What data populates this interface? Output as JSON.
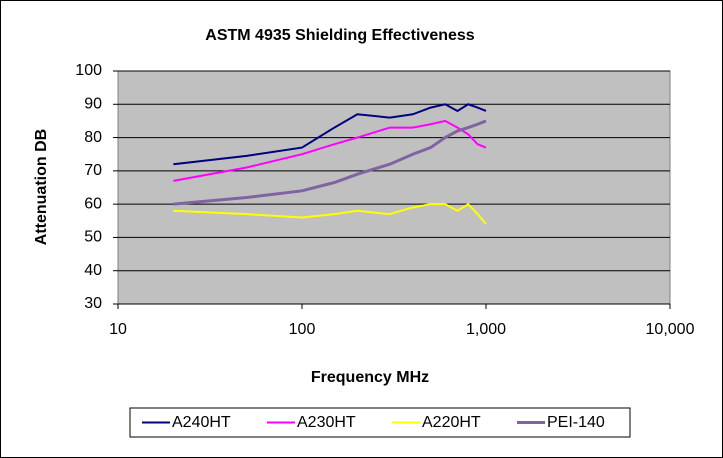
{
  "chart_data": {
    "type": "line",
    "title": "ASTM 4935 Shielding Effectiveness",
    "x_label": "Frequency MHz",
    "y_label": "Attenuation DB",
    "x": [
      20,
      50,
      100,
      150,
      200,
      300,
      400,
      500,
      600,
      700,
      800,
      900,
      1000
    ],
    "series": [
      {
        "name": "A240HT",
        "color": "#000080",
        "values": [
          72,
          74.5,
          77,
          83,
          87,
          86,
          87,
          89,
          90,
          88,
          90,
          89,
          88
        ]
      },
      {
        "name": "A230HT",
        "color": "#ff00ff",
        "values": [
          67,
          71,
          75,
          78,
          80,
          83,
          83,
          84,
          85,
          83,
          81,
          78,
          77
        ]
      },
      {
        "name": "A220HT",
        "color": "#ffff00",
        "values": [
          58,
          57,
          56,
          57,
          58,
          57,
          59,
          60,
          60,
          58,
          60,
          57,
          54
        ]
      },
      {
        "name": "PEI-140",
        "color": "#8064a2",
        "values": [
          60,
          62,
          64,
          66.5,
          69,
          72,
          75,
          77,
          80,
          82,
          83,
          84,
          85
        ]
      }
    ],
    "xlog": true,
    "xlim": [
      10,
      10000
    ],
    "xticks": [
      10,
      100,
      {
        "value": 1000,
        "label": "1,000"
      },
      {
        "value": 10000,
        "label": "10,000"
      }
    ],
    "ylim": [
      30,
      100
    ],
    "yticks": [
      30,
      40,
      50,
      60,
      70,
      80,
      90,
      100
    ],
    "grid": true,
    "legend": "bottom"
  }
}
